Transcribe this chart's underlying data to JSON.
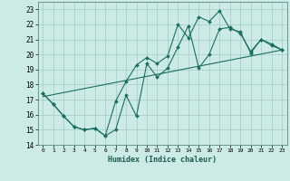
{
  "xlabel": "Humidex (Indice chaleur)",
  "bg_color": "#cceae6",
  "grid_color": "#aacfcb",
  "line_color": "#1a6e62",
  "xlim": [
    -0.5,
    23.5
  ],
  "ylim": [
    14,
    23.5
  ],
  "xticks": [
    0,
    1,
    2,
    3,
    4,
    5,
    6,
    7,
    8,
    9,
    10,
    11,
    12,
    13,
    14,
    15,
    16,
    17,
    18,
    19,
    20,
    21,
    22,
    23
  ],
  "yticks": [
    14,
    15,
    16,
    17,
    18,
    19,
    20,
    21,
    22,
    23
  ],
  "series1_x": [
    0,
    1,
    2,
    3,
    4,
    5,
    6,
    7,
    8,
    9,
    10,
    11,
    12,
    13,
    14,
    15,
    16,
    17,
    18,
    19,
    20,
    21,
    22,
    23
  ],
  "series1_y": [
    17.4,
    16.7,
    15.9,
    15.2,
    15.0,
    15.1,
    14.6,
    15.0,
    17.3,
    15.9,
    19.4,
    18.5,
    19.1,
    20.5,
    21.9,
    19.1,
    20.0,
    21.7,
    21.8,
    21.4,
    20.2,
    21.0,
    20.6,
    20.3
  ],
  "series2_x": [
    0,
    1,
    2,
    3,
    4,
    5,
    6,
    7,
    8,
    9,
    10,
    11,
    12,
    13,
    14,
    15,
    16,
    17,
    18,
    19,
    20,
    21,
    22,
    23
  ],
  "series2_y": [
    17.4,
    16.7,
    15.9,
    15.2,
    15.0,
    15.1,
    14.6,
    16.9,
    18.2,
    19.3,
    19.8,
    19.4,
    19.9,
    22.0,
    21.1,
    22.5,
    22.2,
    22.9,
    21.7,
    21.5,
    20.1,
    21.0,
    20.7,
    20.3
  ],
  "series3_x": [
    0,
    23
  ],
  "series3_y": [
    17.2,
    20.3
  ]
}
